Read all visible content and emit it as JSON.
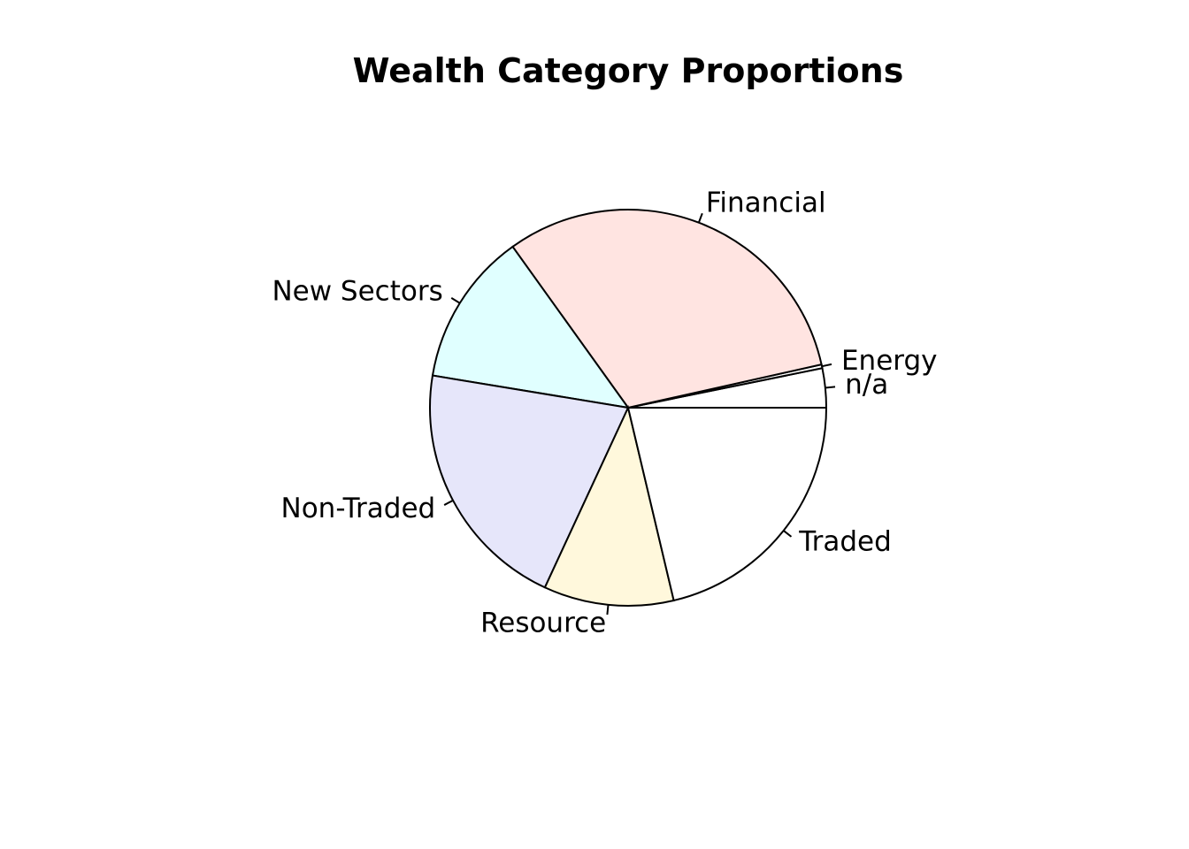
{
  "chart_data": {
    "type": "pie",
    "title": "Wealth Category Proportions",
    "start_angle_deg": 0,
    "direction": "counterclockwise",
    "slices": [
      {
        "label": "n/a",
        "value": 3.2,
        "color": "#ffffff"
      },
      {
        "label": "Energy",
        "value": 0.3,
        "color": "#ffffff"
      },
      {
        "label": "Financial",
        "value": 31.4,
        "color": "#ffe4e1"
      },
      {
        "label": "New Sectors",
        "value": 12.5,
        "color": "#e0ffff"
      },
      {
        "label": "Non-Traded",
        "value": 20.7,
        "color": "#e6e6fa"
      },
      {
        "label": "Resource",
        "value": 10.6,
        "color": "#fff8dc"
      },
      {
        "label": "Traded",
        "value": 21.3,
        "color": "#ffffff"
      }
    ]
  }
}
